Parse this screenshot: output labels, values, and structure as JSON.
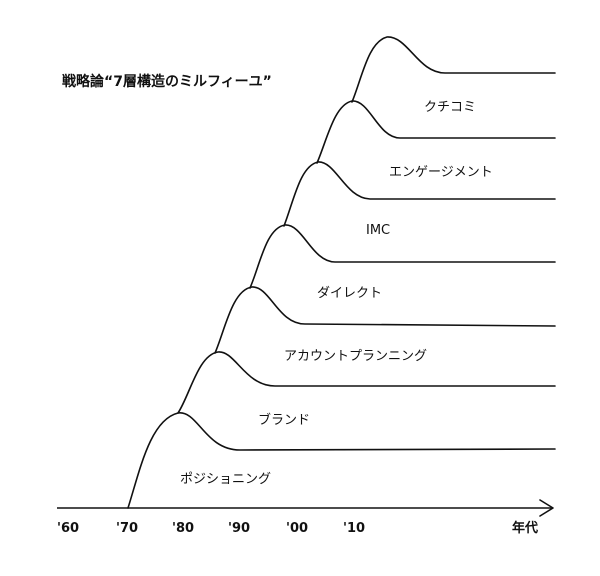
{
  "title": "戦略論“7層構造のミルフィーユ”",
  "colors": {
    "ink": "#111111",
    "background": "#ffffff"
  },
  "layers": [
    {
      "label": "ポジショニング"
    },
    {
      "label": "ブランド"
    },
    {
      "label": "アカウントプランニング"
    },
    {
      "label": "ダイレクト"
    },
    {
      "label": "IMC"
    },
    {
      "label": "エンゲージメント"
    },
    {
      "label": "クチコミ"
    }
  ],
  "axis": {
    "ticks": [
      "'60",
      "'70",
      "'80",
      "'90",
      "'00",
      "'10"
    ],
    "unit_label": "年代"
  }
}
